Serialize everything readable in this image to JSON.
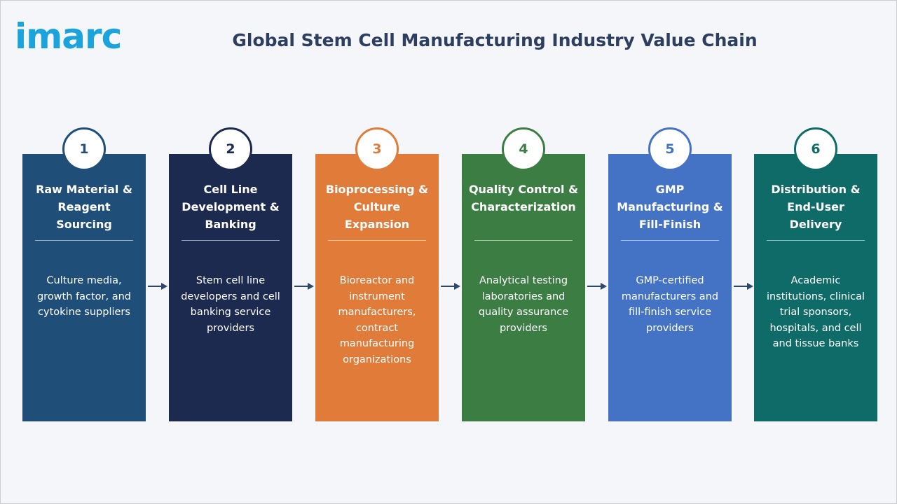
{
  "header": {
    "logo": "imarc",
    "title": "Global Stem Cell Manufacturing Industry Value Chain"
  },
  "stages": [
    {
      "number": "1",
      "title": "Raw Material & Reagent Sourcing",
      "description": "Culture media, growth factor, and cytokine suppliers",
      "color": "#1f4e79"
    },
    {
      "number": "2",
      "title": "Cell Line Development & Banking",
      "description": "Stem cell line developers and cell banking service providers",
      "color": "#1b2a4e"
    },
    {
      "number": "3",
      "title": "Bioprocessing & Culture Expansion",
      "description": "Bioreactor and instrument manufacturers, contract manufacturing organizations",
      "color": "#e07b39"
    },
    {
      "number": "4",
      "title": "Quality Control & Characterization",
      "description": "Analytical testing laboratories and quality assurance providers",
      "color": "#3c7d44"
    },
    {
      "number": "5",
      "title": "GMP Manufacturing & Fill-Finish",
      "description": "GMP-certified manufacturers and fill-finish service providers",
      "color": "#4472c4"
    },
    {
      "number": "6",
      "title": "Distribution & End-User Delivery",
      "description": "Academic institutions, clinical trial sponsors, hospitals, and cell and tissue banks",
      "color": "#0f6b68"
    }
  ]
}
